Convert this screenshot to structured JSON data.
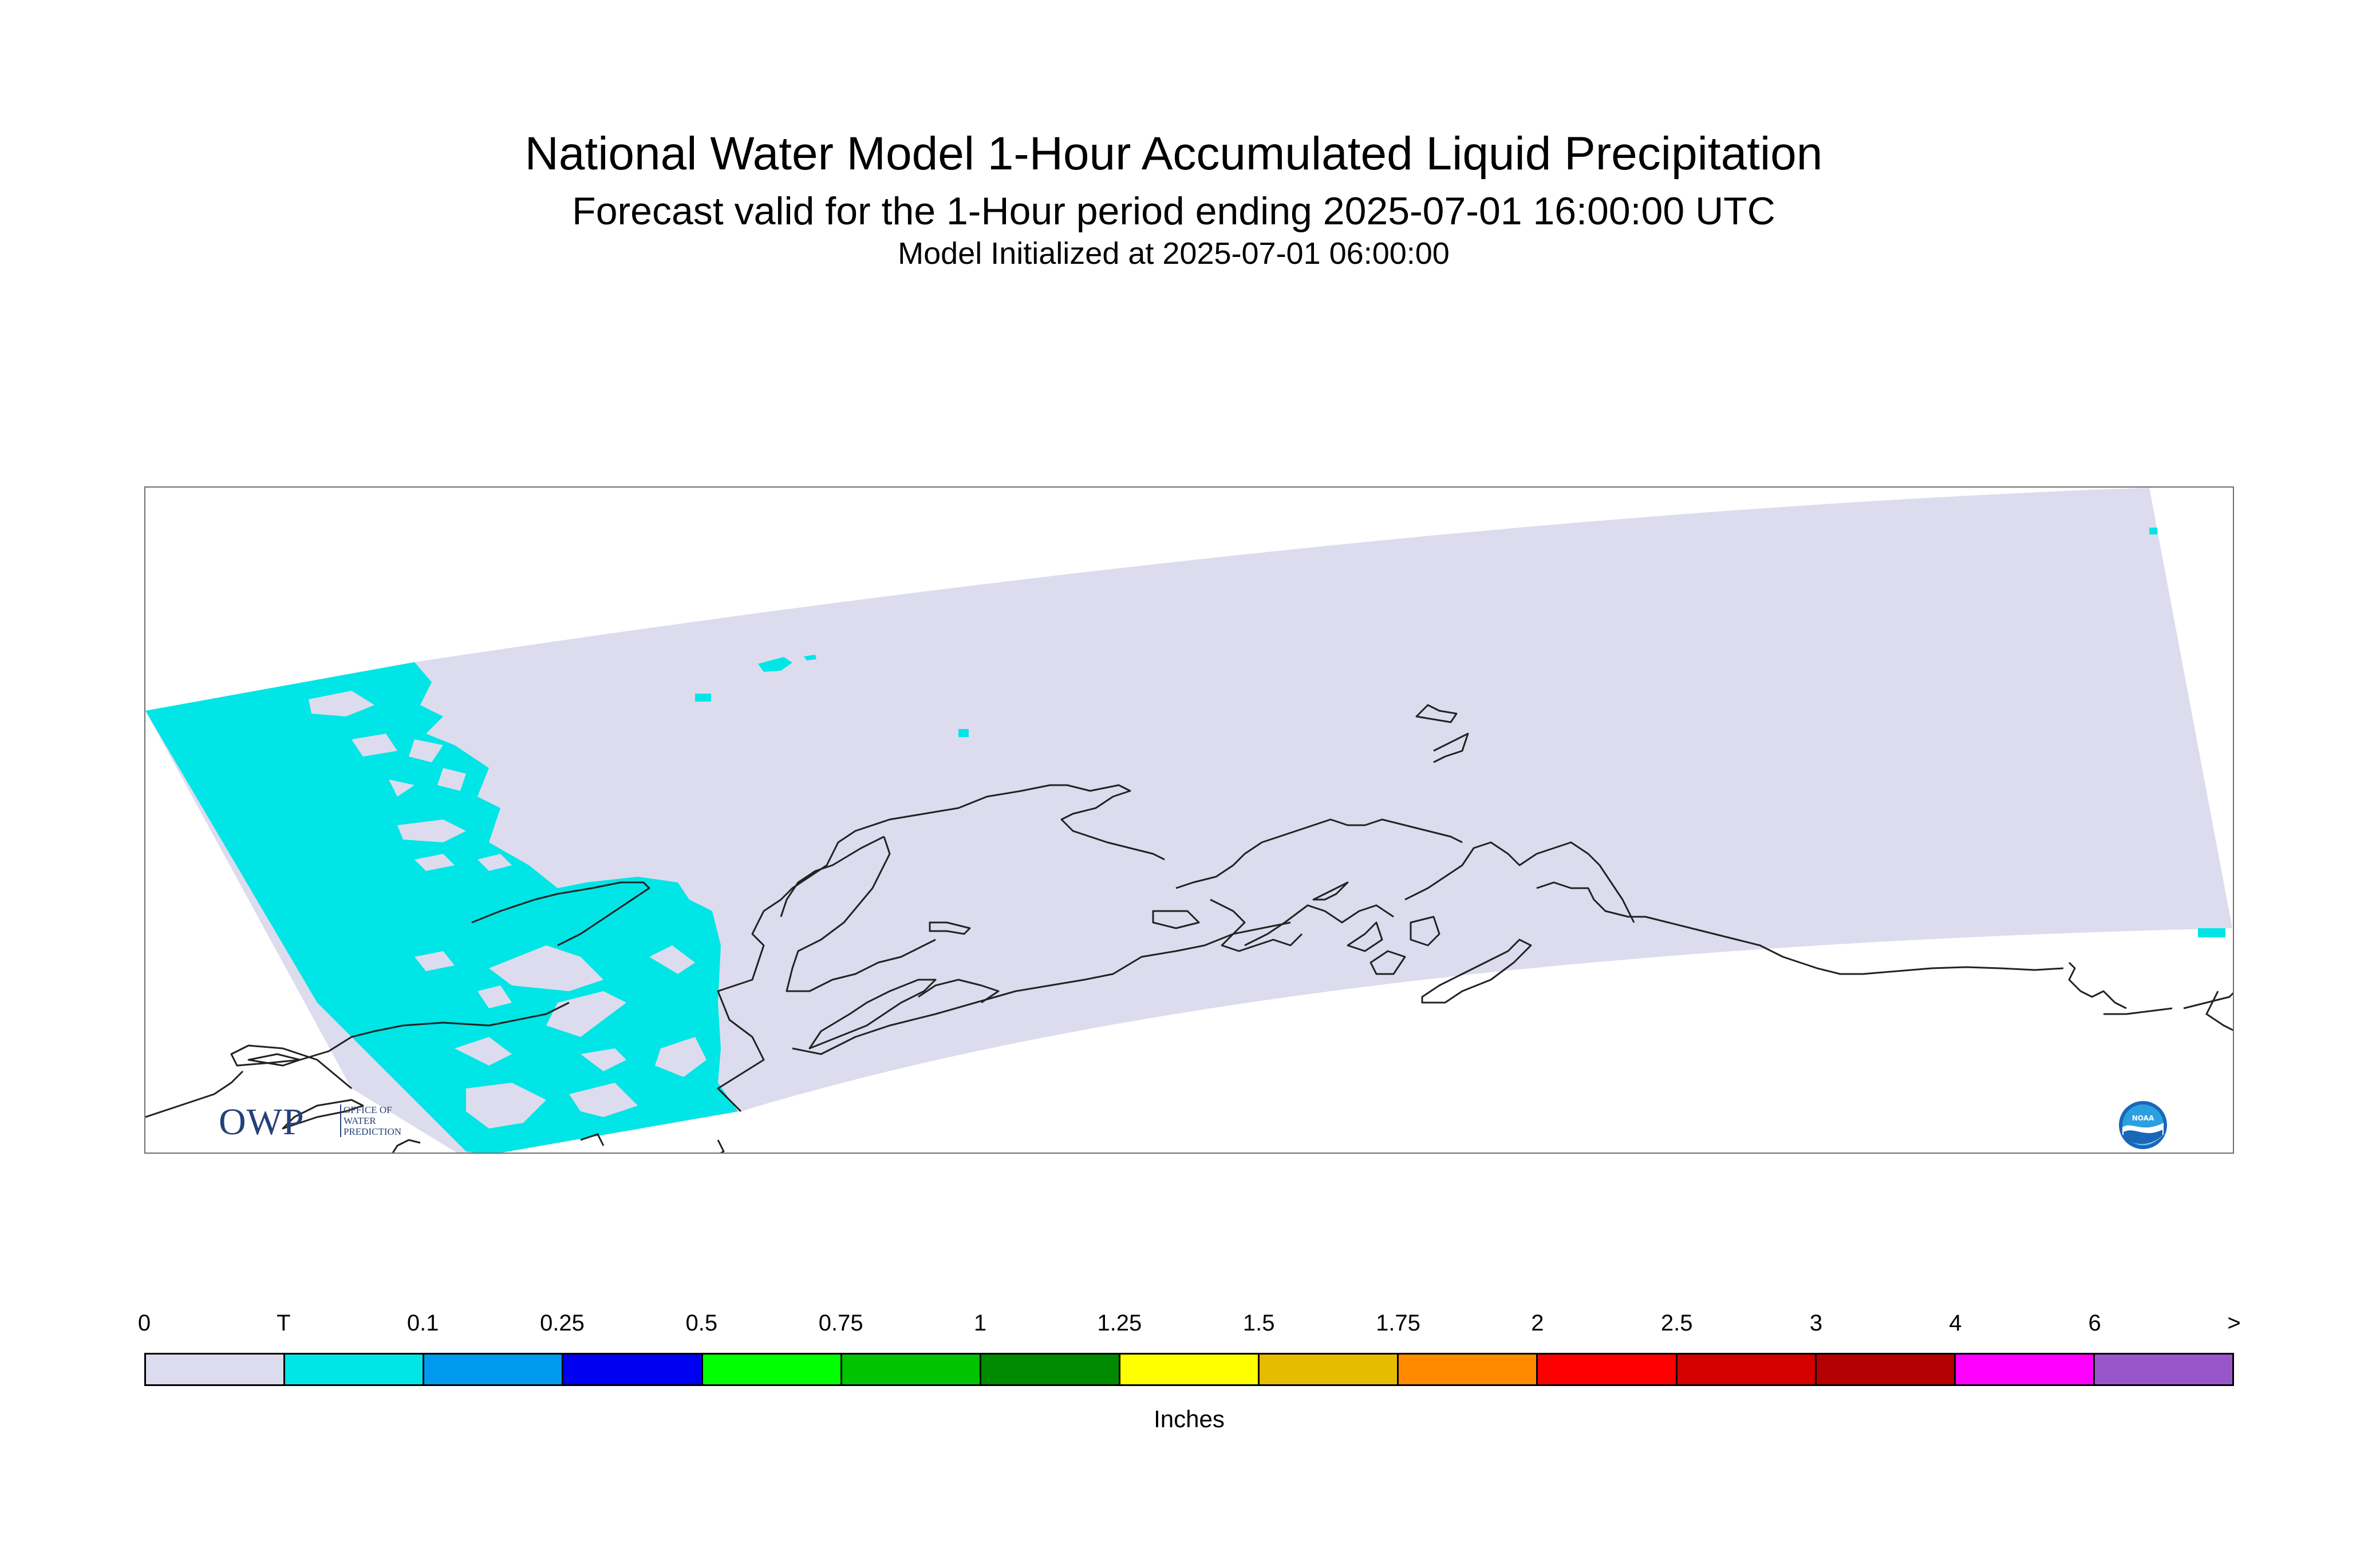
{
  "header": {
    "title": "National Water Model 1-Hour Accumulated Liquid Precipitation",
    "subtitle": "Forecast valid for the 1-Hour period ending 2025-07-01 16:00:00 UTC",
    "initialized": "Model Initialized at 2025-07-01 06:00:00"
  },
  "map": {
    "region": "Alaska",
    "domain_fill_color": "#dcdcee",
    "trace_color": "#00e5e5",
    "coastline_color": "#222222",
    "logos": {
      "owp": {
        "text": "OWP",
        "subtext": [
          "OFFICE OF",
          "WATER",
          "PREDICTION"
        ]
      },
      "noaa": {
        "text": "NOAA"
      }
    }
  },
  "legend": {
    "units": "Inches",
    "tick_labels": [
      "0",
      "T",
      "0.1",
      "0.25",
      "0.5",
      "0.75",
      "1",
      "1.25",
      "1.5",
      "1.75",
      "2",
      "2.5",
      "3",
      "4",
      "6",
      ">"
    ],
    "colors": [
      "#dcdcee",
      "#00e5e5",
      "#0099f0",
      "#0000f0",
      "#00ff00",
      "#00c400",
      "#008a00",
      "#ffff00",
      "#e5bc00",
      "#ff8a00",
      "#ff0000",
      "#d40000",
      "#b40000",
      "#ff00ff",
      "#9955c9"
    ]
  }
}
